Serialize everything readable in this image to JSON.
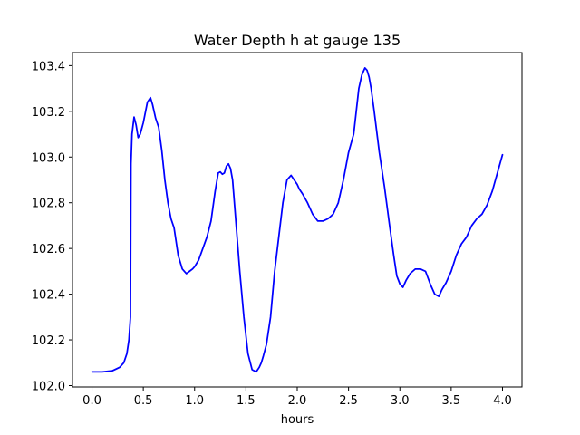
{
  "chart_data": {
    "type": "line",
    "title": "Water Depth h at gauge 135",
    "xlabel": "hours",
    "ylabel": "",
    "xlim": [
      -0.19,
      4.19
    ],
    "ylim": [
      101.994,
      103.457
    ],
    "xticks": [
      0.0,
      0.5,
      1.0,
      1.5,
      2.0,
      2.5,
      3.0,
      3.5,
      4.0
    ],
    "xtick_labels": [
      "0.0",
      "0.5",
      "1.0",
      "1.5",
      "2.0",
      "2.5",
      "3.0",
      "3.5",
      "4.0"
    ],
    "yticks": [
      102.0,
      102.2,
      102.4,
      102.6,
      102.8,
      103.0,
      103.2,
      103.4
    ],
    "ytick_labels": [
      "102.0",
      "102.2",
      "102.4",
      "102.6",
      "102.8",
      "103.0",
      "103.2",
      "103.4"
    ],
    "grid": false,
    "series": [
      {
        "color": "#0000ff",
        "x": [
          0.0,
          0.1,
          0.2,
          0.27,
          0.31,
          0.34,
          0.36,
          0.375,
          0.38,
          0.39,
          0.41,
          0.43,
          0.45,
          0.47,
          0.5,
          0.54,
          0.57,
          0.59,
          0.62,
          0.65,
          0.68,
          0.71,
          0.74,
          0.77,
          0.8,
          0.84,
          0.88,
          0.92,
          0.95,
          0.98,
          1.0,
          1.04,
          1.08,
          1.12,
          1.16,
          1.2,
          1.23,
          1.25,
          1.27,
          1.29,
          1.31,
          1.33,
          1.35,
          1.37,
          1.4,
          1.44,
          1.48,
          1.52,
          1.56,
          1.6,
          1.63,
          1.65,
          1.67,
          1.7,
          1.74,
          1.78,
          1.82,
          1.86,
          1.9,
          1.94,
          1.97,
          2.0,
          2.02,
          2.05,
          2.1,
          2.15,
          2.2,
          2.25,
          2.3,
          2.35,
          2.4,
          2.45,
          2.5,
          2.55,
          2.6,
          2.63,
          2.66,
          2.68,
          2.7,
          2.72,
          2.75,
          2.8,
          2.85,
          2.9,
          2.94,
          2.97,
          3.0,
          3.03,
          3.06,
          3.1,
          3.15,
          3.2,
          3.25,
          3.3,
          3.34,
          3.38,
          3.41,
          3.45,
          3.5,
          3.55,
          3.6,
          3.65,
          3.7,
          3.75,
          3.8,
          3.85,
          3.9,
          3.95,
          4.0
        ],
        "y": [
          102.06,
          102.06,
          102.065,
          102.08,
          102.1,
          102.14,
          102.2,
          102.3,
          102.97,
          103.1,
          103.175,
          103.14,
          103.085,
          103.1,
          103.15,
          103.24,
          103.26,
          103.23,
          103.17,
          103.13,
          103.03,
          102.9,
          102.8,
          102.73,
          102.69,
          102.57,
          102.51,
          102.49,
          102.5,
          102.51,
          102.52,
          102.55,
          102.6,
          102.65,
          102.72,
          102.85,
          102.93,
          102.935,
          102.925,
          102.93,
          102.96,
          102.97,
          102.95,
          102.9,
          102.73,
          102.5,
          102.3,
          102.14,
          102.07,
          102.06,
          102.08,
          102.1,
          102.13,
          102.18,
          102.3,
          102.5,
          102.65,
          102.8,
          102.9,
          102.92,
          102.9,
          102.88,
          102.86,
          102.84,
          102.8,
          102.75,
          102.72,
          102.72,
          102.73,
          102.75,
          102.8,
          102.9,
          103.02,
          103.1,
          103.3,
          103.36,
          103.39,
          103.38,
          103.35,
          103.3,
          103.2,
          103.02,
          102.87,
          102.7,
          102.57,
          102.48,
          102.445,
          102.43,
          102.46,
          102.49,
          102.51,
          102.51,
          102.5,
          102.44,
          102.4,
          102.39,
          102.42,
          102.45,
          102.5,
          102.57,
          102.62,
          102.65,
          102.7,
          102.73,
          102.75,
          102.79,
          102.85,
          102.93,
          103.01
        ]
      }
    ]
  }
}
